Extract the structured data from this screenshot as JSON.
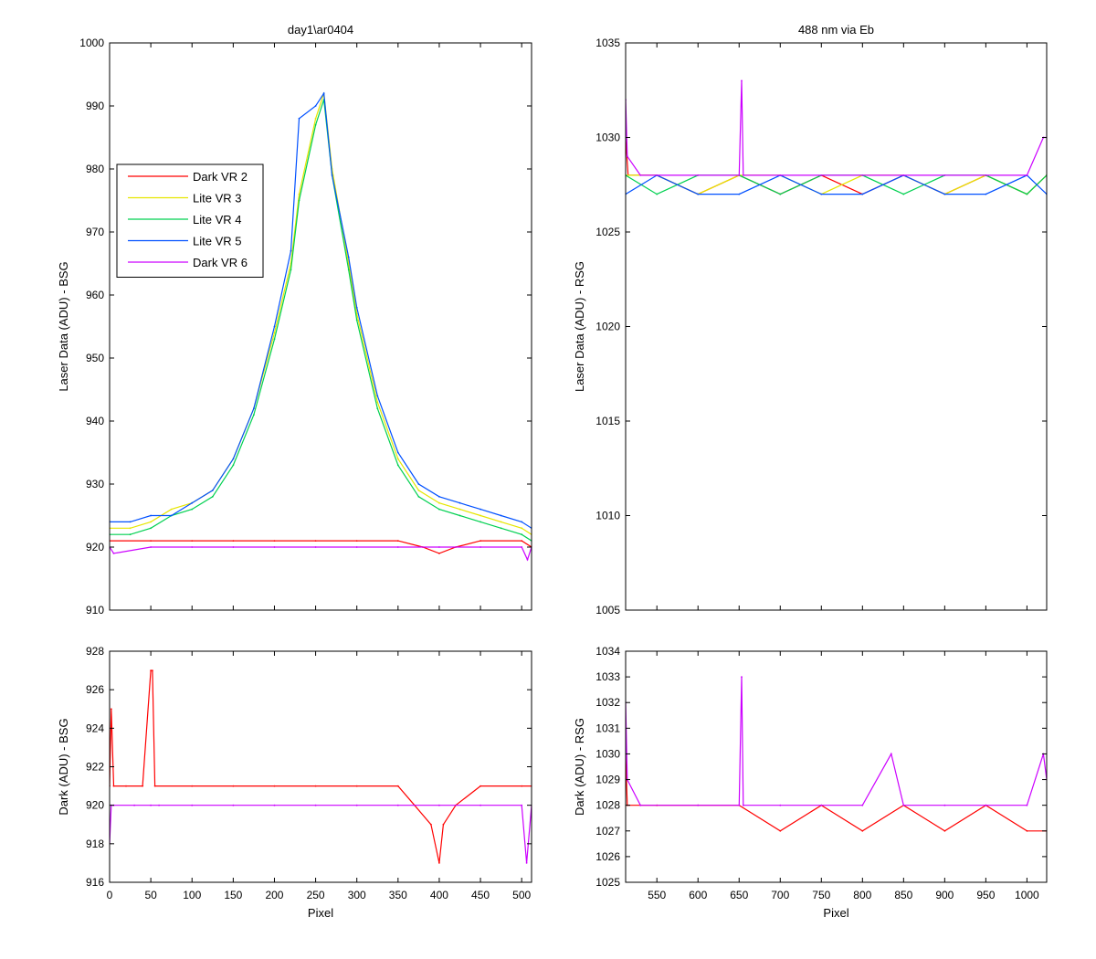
{
  "chart_data": [
    {
      "type": "line",
      "title": "day1\\ar0404",
      "xlabel": "",
      "ylabel": "Laser Data (ADU) - BSG",
      "xlim": [
        0,
        512
      ],
      "ylim": [
        910,
        1000
      ],
      "xticks": [
        0,
        50,
        100,
        150,
        200,
        250,
        300,
        350,
        400,
        450,
        500
      ],
      "xticklabels_shown": false,
      "yticks": [
        910,
        920,
        930,
        940,
        950,
        960,
        970,
        980,
        990,
        1000
      ],
      "legend": "upper-left",
      "grid": false,
      "series": [
        {
          "name": "Dark VR 2",
          "color": "#ff0000",
          "x": [
            0,
            50,
            100,
            150,
            200,
            250,
            300,
            350,
            380,
            400,
            420,
            450,
            500,
            512
          ],
          "values": [
            921,
            921,
            921,
            921,
            921,
            921,
            921,
            921,
            920,
            919,
            920,
            921,
            921,
            920
          ]
        },
        {
          "name": "Lite VR 3",
          "color": "#e6e600",
          "x": [
            0,
            25,
            50,
            75,
            100,
            125,
            150,
            175,
            200,
            220,
            230,
            250,
            260,
            270,
            290,
            300,
            325,
            350,
            375,
            400,
            425,
            450,
            475,
            500,
            512
          ],
          "values": [
            923,
            923,
            924,
            926,
            927,
            929,
            934,
            942,
            954,
            965,
            976,
            988,
            992,
            980,
            965,
            957,
            943,
            934,
            929,
            927,
            926,
            925,
            924,
            923,
            922
          ]
        },
        {
          "name": "Lite VR 4",
          "color": "#00d050",
          "x": [
            0,
            25,
            50,
            75,
            100,
            125,
            150,
            175,
            200,
            220,
            230,
            250,
            260,
            270,
            290,
            300,
            325,
            350,
            375,
            400,
            425,
            450,
            475,
            500,
            512
          ],
          "values": [
            922,
            922,
            923,
            925,
            926,
            928,
            933,
            941,
            953,
            964,
            975,
            987,
            991,
            979,
            964,
            956,
            942,
            933,
            928,
            926,
            925,
            924,
            923,
            922,
            921
          ]
        },
        {
          "name": "Lite VR 5",
          "color": "#0050ff",
          "x": [
            0,
            25,
            50,
            75,
            100,
            125,
            150,
            175,
            200,
            220,
            230,
            250,
            260,
            270,
            290,
            300,
            325,
            350,
            375,
            400,
            425,
            450,
            475,
            500,
            512
          ],
          "values": [
            924,
            924,
            925,
            925,
            927,
            929,
            934,
            942,
            955,
            967,
            988,
            990,
            992,
            979,
            966,
            958,
            944,
            935,
            930,
            928,
            927,
            926,
            925,
            924,
            923
          ]
        },
        {
          "name": "Dark VR 6",
          "color": "#cc00ff",
          "x": [
            0,
            5,
            50,
            100,
            150,
            200,
            250,
            300,
            350,
            400,
            450,
            500,
            507,
            512
          ],
          "values": [
            920,
            919,
            920,
            920,
            920,
            920,
            920,
            920,
            920,
            920,
            920,
            920,
            918,
            920
          ]
        }
      ]
    },
    {
      "type": "line",
      "title": "488 nm via Eb",
      "xlabel": "",
      "ylabel": "Laser Data (ADU) - RSG",
      "xlim": [
        512,
        1024
      ],
      "ylim": [
        1005,
        1035
      ],
      "xticks": [
        550,
        600,
        650,
        700,
        750,
        800,
        850,
        900,
        950,
        1000
      ],
      "xticklabels_shown": false,
      "yticks": [
        1005,
        1010,
        1015,
        1020,
        1025,
        1030,
        1035
      ],
      "grid": false,
      "series": [
        {
          "name": "Dark VR 2",
          "color": "#ff0000",
          "x": [
            512,
            515,
            550,
            600,
            650,
            700,
            750,
            800,
            850,
            900,
            950,
            1000,
            1024
          ],
          "values": [
            1030,
            1028,
            1028,
            1027,
            1028,
            1027,
            1028,
            1027,
            1028,
            1027,
            1028,
            1027,
            1028
          ]
        },
        {
          "name": "Lite VR 3",
          "color": "#e6e600",
          "x": [
            512,
            550,
            600,
            650,
            700,
            750,
            800,
            850,
            900,
            950,
            1000,
            1024
          ],
          "values": [
            1028,
            1028,
            1027,
            1028,
            1028,
            1027,
            1028,
            1028,
            1027,
            1028,
            1027,
            1028
          ]
        },
        {
          "name": "Lite VR 4",
          "color": "#00d050",
          "x": [
            512,
            550,
            600,
            650,
            700,
            750,
            800,
            850,
            900,
            950,
            1000,
            1024
          ],
          "values": [
            1028,
            1027,
            1028,
            1028,
            1027,
            1028,
            1028,
            1027,
            1028,
            1028,
            1027,
            1028
          ]
        },
        {
          "name": "Lite VR 5",
          "color": "#0050ff",
          "x": [
            512,
            550,
            600,
            650,
            700,
            750,
            800,
            850,
            900,
            950,
            1000,
            1024
          ],
          "values": [
            1027,
            1028,
            1027,
            1027,
            1028,
            1027,
            1027,
            1028,
            1027,
            1027,
            1028,
            1027
          ]
        },
        {
          "name": "Dark VR 6",
          "color": "#cc00ff",
          "x": [
            512,
            514,
            530,
            600,
            650,
            653,
            655,
            700,
            750,
            800,
            850,
            900,
            950,
            1000,
            1020,
            1024
          ],
          "values": [
            1032,
            1029,
            1028,
            1028,
            1028,
            1033,
            1028,
            1028,
            1028,
            1028,
            1028,
            1028,
            1028,
            1028,
            1030,
            1030
          ]
        }
      ]
    },
    {
      "type": "line",
      "title": "",
      "xlabel": "Pixel",
      "ylabel": "Dark (ADU) - BSG",
      "xlim": [
        0,
        512
      ],
      "ylim": [
        916,
        928
      ],
      "xticks": [
        0,
        50,
        100,
        150,
        200,
        250,
        300,
        350,
        400,
        450,
        500
      ],
      "yticks": [
        916,
        918,
        920,
        922,
        924,
        926,
        928
      ],
      "grid": false,
      "series": [
        {
          "name": "Dark VR 2",
          "color": "#ff0000",
          "x": [
            0,
            2,
            5,
            20,
            40,
            50,
            52,
            55,
            100,
            150,
            200,
            250,
            300,
            350,
            370,
            390,
            400,
            405,
            420,
            450,
            500,
            512
          ],
          "values": [
            921,
            925,
            921,
            921,
            921,
            927,
            927,
            921,
            921,
            921,
            921,
            921,
            921,
            921,
            920,
            919,
            917,
            919,
            920,
            921,
            921,
            921
          ]
        },
        {
          "name": "Dark VR 6",
          "color": "#cc00ff",
          "x": [
            0,
            2,
            5,
            30,
            50,
            60,
            100,
            150,
            200,
            250,
            300,
            350,
            400,
            450,
            500,
            506,
            512
          ],
          "values": [
            918,
            920,
            920,
            920,
            920,
            920,
            920,
            920,
            920,
            920,
            920,
            920,
            920,
            920,
            920,
            917,
            920
          ]
        }
      ]
    },
    {
      "type": "line",
      "title": "",
      "xlabel": "Pixel",
      "ylabel": "Dark (ADU) - RSG",
      "xlim": [
        512,
        1024
      ],
      "ylim": [
        1025,
        1034
      ],
      "xticks": [
        550,
        600,
        650,
        700,
        750,
        800,
        850,
        900,
        950,
        1000
      ],
      "yticks": [
        1025,
        1026,
        1027,
        1028,
        1029,
        1030,
        1031,
        1032,
        1033,
        1034
      ],
      "grid": false,
      "series": [
        {
          "name": "Dark VR 2",
          "color": "#ff0000",
          "x": [
            512,
            514,
            530,
            550,
            600,
            650,
            700,
            750,
            800,
            850,
            900,
            950,
            1000,
            1024
          ],
          "values": [
            1030,
            1028,
            1028,
            1028,
            1028,
            1028,
            1027,
            1028,
            1027,
            1028,
            1027,
            1028,
            1027,
            1027
          ]
        },
        {
          "name": "Dark VR 6",
          "color": "#cc00ff",
          "x": [
            512,
            514,
            530,
            600,
            650,
            653,
            655,
            700,
            750,
            800,
            835,
            850,
            900,
            950,
            1000,
            1020,
            1024
          ],
          "values": [
            1032,
            1029,
            1028,
            1028,
            1028,
            1033,
            1028,
            1028,
            1028,
            1028,
            1030,
            1028,
            1028,
            1028,
            1028,
            1030,
            1029
          ]
        }
      ]
    }
  ]
}
